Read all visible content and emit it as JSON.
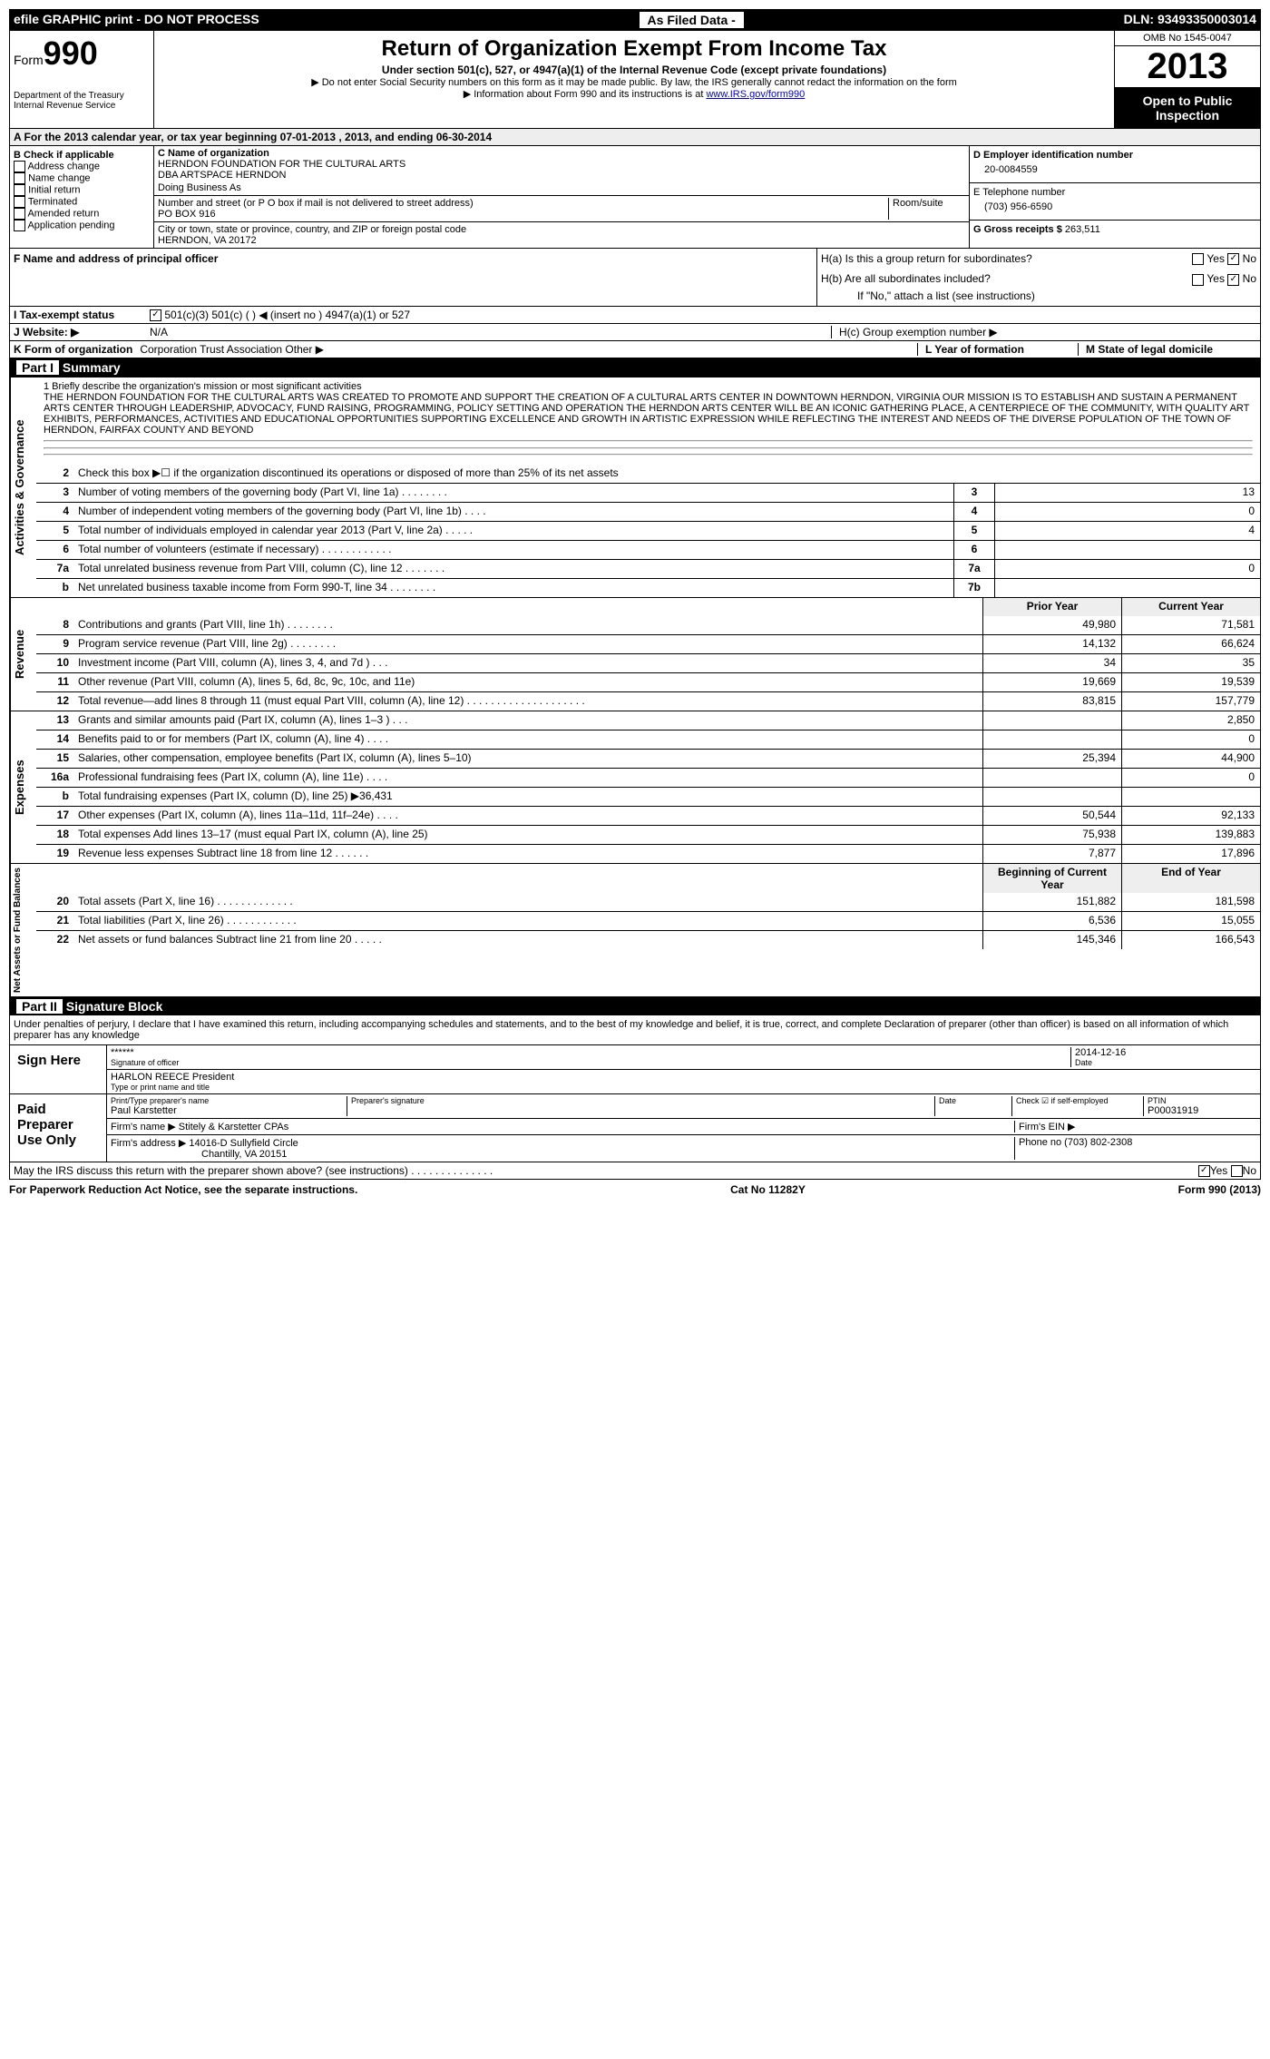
{
  "topbar": {
    "left": "efile GRAPHIC print - DO NOT PROCESS",
    "mid": "As Filed Data -",
    "right": "DLN: 93493350003014"
  },
  "header": {
    "form_word": "Form",
    "form_num": "990",
    "dept1": "Department of the Treasury",
    "dept2": "Internal Revenue Service",
    "title": "Return of Organization Exempt From Income Tax",
    "sub1": "Under section 501(c), 527, or 4947(a)(1) of the Internal Revenue Code (except private foundations)",
    "sub2": "▶ Do not enter Social Security numbers on this form as it may be made public. By law, the IRS generally cannot redact the information on the form",
    "sub3_pre": "▶ Information about Form 990 and its instructions is at ",
    "sub3_link": "www.IRS.gov/form990",
    "omb": "OMB No 1545-0047",
    "year": "2013",
    "open1": "Open to Public",
    "open2": "Inspection"
  },
  "rowA": "A For the 2013 calendar year, or tax year beginning 07-01-2013    , 2013, and ending 06-30-2014",
  "colB": {
    "head": "B Check if applicable",
    "items": [
      "Address change",
      "Name change",
      "Initial return",
      "Terminated",
      "Amended return",
      "Application pending"
    ]
  },
  "colC": {
    "name_lbl": "C Name of organization",
    "name1": "HERNDON FOUNDATION FOR THE CULTURAL ARTS",
    "name2": "DBA ARTSPACE HERNDON",
    "dba_lbl": "Doing Business As",
    "street_lbl": "Number and street (or P O  box if mail is not delivered to street address)",
    "room_lbl": "Room/suite",
    "street": "PO BOX 916",
    "city_lbl": "City or town, state or province, country, and ZIP or foreign postal code",
    "city": "HERNDON, VA  20172"
  },
  "colDE": {
    "d_lbl": "D Employer identification number",
    "ein": "20-0084559",
    "e_lbl": "E Telephone number",
    "phone": "(703) 956-6590",
    "g_lbl": "G Gross receipts $",
    "g_val": "263,511"
  },
  "secF": {
    "f_lbl": "F  Name and address of principal officer"
  },
  "secH": {
    "ha": "H(a)  Is this a group return for subordinates?",
    "hb": "H(b)  Are all subordinates included?",
    "hb_note": "If \"No,\" attach a list  (see instructions)",
    "hc": "H(c)   Group exemption number ▶",
    "yes": "Yes",
    "no": "No"
  },
  "lineI": {
    "lbl": "I  Tax-exempt status",
    "opts": "501(c)(3)       501(c) (   ) ◀ (insert no )       4947(a)(1) or       527"
  },
  "lineJ": {
    "lbl": "J  Website: ▶",
    "val": "N/A"
  },
  "lineK": {
    "lbl": "K Form of organization",
    "opts": "Corporation      Trust      Association      Other ▶",
    "l_lbl": "L Year of formation",
    "m_lbl": "M State of legal domicile"
  },
  "part1": {
    "num": "Part I",
    "title": "Summary"
  },
  "mission": {
    "lbl": "1   Briefly describe the organization's mission or most significant activities",
    "text": "THE HERNDON FOUNDATION FOR THE CULTURAL ARTS WAS CREATED TO PROMOTE AND SUPPORT THE CREATION OF A CULTURAL ARTS CENTER IN DOWNTOWN HERNDON, VIRGINIA  OUR MISSION IS TO ESTABLISH AND SUSTAIN A PERMANENT ARTS CENTER THROUGH LEADERSHIP, ADVOCACY, FUND RAISING, PROGRAMMING, POLICY SETTING AND OPERATION THE HERNDON ARTS CENTER WILL BE AN ICONIC GATHERING PLACE, A CENTERPIECE OF THE COMMUNITY, WITH QUALITY ART EXHIBITS, PERFORMANCES, ACTIVITIES AND EDUCATIONAL OPPORTUNITIES SUPPORTING EXCELLENCE AND GROWTH IN ARTISTIC EXPRESSION WHILE REFLECTING THE INTEREST AND NEEDS OF THE DIVERSE POPULATION OF THE TOWN OF HERNDON, FAIRFAX COUNTY AND BEYOND"
  },
  "tabs": {
    "ag": "Activities & Governance",
    "rev": "Revenue",
    "exp": "Expenses",
    "na": "Net Assets or Fund Balances"
  },
  "ag_rows": [
    {
      "n": "2",
      "d": "Check this box ▶☐ if the organization discontinued its operations or disposed of more than 25% of its net assets"
    },
    {
      "n": "3",
      "d": "Number of voting members of the governing body (Part VI, line 1a)  .  .  .  .  .  .  .  .",
      "b": "3",
      "v": "13"
    },
    {
      "n": "4",
      "d": "Number of independent voting members of the governing body (Part VI, line 1b)  .  .  .  .",
      "b": "4",
      "v": "0"
    },
    {
      "n": "5",
      "d": "Total number of individuals employed in calendar year 2013 (Part V, line 2a)  .  .  .  .  .",
      "b": "5",
      "v": "4"
    },
    {
      "n": "6",
      "d": "Total number of volunteers (estimate if necessary)  .  .  .  .  .  .  .  .  .  .  .  .",
      "b": "6",
      "v": ""
    },
    {
      "n": "7a",
      "d": "Total unrelated business revenue from Part VIII, column (C), line 12  .  .  .  .  .  .  .",
      "b": "7a",
      "v": "0"
    },
    {
      "n": "b",
      "d": "Net unrelated business taxable income from Form 990-T, line 34  .  .  .  .  .  .  .  .",
      "b": "7b",
      "v": ""
    }
  ],
  "py_cy": {
    "py": "Prior Year",
    "cy": "Current Year"
  },
  "rev_rows": [
    {
      "n": "8",
      "d": "Contributions and grants (Part VIII, line 1h)  .  .  .  .  .  .  .  .",
      "p": "49,980",
      "c": "71,581"
    },
    {
      "n": "9",
      "d": "Program service revenue (Part VIII, line 2g)  .  .  .  .  .  .  .  .",
      "p": "14,132",
      "c": "66,624"
    },
    {
      "n": "10",
      "d": "Investment income (Part VIII, column (A), lines 3, 4, and 7d )  .  .  .",
      "p": "34",
      "c": "35"
    },
    {
      "n": "11",
      "d": "Other revenue (Part VIII, column (A), lines 5, 6d, 8c, 9c, 10c, and 11e)",
      "p": "19,669",
      "c": "19,539"
    },
    {
      "n": "12",
      "d": "Total revenue—add lines 8 through 11 (must equal Part VIII, column (A), line 12)  .  .  .  .  .  .  .  .  .  .  .  .  .  .  .  .  .  .  .  .",
      "p": "83,815",
      "c": "157,779"
    }
  ],
  "exp_rows": [
    {
      "n": "13",
      "d": "Grants and similar amounts paid (Part IX, column (A), lines 1–3 )  .  .  .",
      "p": "",
      "c": "2,850"
    },
    {
      "n": "14",
      "d": "Benefits paid to or for members (Part IX, column (A), line 4)  .  .  .  .",
      "p": "",
      "c": "0"
    },
    {
      "n": "15",
      "d": "Salaries, other compensation, employee benefits (Part IX, column (A), lines 5–10)",
      "p": "25,394",
      "c": "44,900"
    },
    {
      "n": "16a",
      "d": "Professional fundraising fees (Part IX, column (A), line 11e)  .  .  .  .",
      "p": "",
      "c": "0"
    },
    {
      "n": "b",
      "d": "Total fundraising expenses (Part IX, column (D), line 25) ▶36,431",
      "p": "",
      "c": ""
    },
    {
      "n": "17",
      "d": "Other expenses (Part IX, column (A), lines 11a–11d, 11f–24e)  .  .  .  .",
      "p": "50,544",
      "c": "92,133"
    },
    {
      "n": "18",
      "d": "Total expenses  Add lines 13–17 (must equal Part IX, column (A), line 25)",
      "p": "75,938",
      "c": "139,883"
    },
    {
      "n": "19",
      "d": "Revenue less expenses  Subtract line 18 from line 12  .  .  .  .  .  .",
      "p": "7,877",
      "c": "17,896"
    }
  ],
  "na_head": {
    "p": "Beginning of Current Year",
    "c": "End of Year"
  },
  "na_rows": [
    {
      "n": "20",
      "d": "Total assets (Part X, line 16)  .  .  .  .  .  .  .  .  .  .  .  .  .",
      "p": "151,882",
      "c": "181,598"
    },
    {
      "n": "21",
      "d": "Total liabilities (Part X, line 26)  .  .  .  .  .  .  .  .  .  .  .  .",
      "p": "6,536",
      "c": "15,055"
    },
    {
      "n": "22",
      "d": "Net assets or fund balances  Subtract line 21 from line 20  .  .  .  .  .",
      "p": "145,346",
      "c": "166,543"
    }
  ],
  "part2": {
    "num": "Part II",
    "title": "Signature Block"
  },
  "perjury": "Under penalties of perjury, I declare that I have examined this return, including accompanying schedules and statements, and to the best of my knowledge and belief, it is true, correct, and complete  Declaration of preparer (other than officer) is based on all information of which preparer has any knowledge",
  "sign": {
    "here": "Sign Here",
    "stars": "******",
    "sig_lbl": "Signature of officer",
    "date": "2014-12-16",
    "date_lbl": "Date",
    "name": "HARLON REECE President",
    "name_lbl": "Type or print name and title"
  },
  "paid": {
    "lbl": "Paid Preparer Use Only",
    "prep_name_lbl": "Print/Type preparer's name",
    "prep_name": "Paul Karstetter",
    "prep_sig_lbl": "Preparer's signature",
    "date_lbl": "Date",
    "check_lbl": "Check ☑ if self-employed",
    "ptin_lbl": "PTIN",
    "ptin": "P00031919",
    "firm_name_lbl": "Firm's name    ▶",
    "firm_name": "Stitely & Karstetter CPAs",
    "firm_ein_lbl": "Firm's EIN ▶",
    "firm_addr_lbl": "Firm's address ▶",
    "firm_addr1": "14016-D Sullyfield Circle",
    "firm_addr2": "Chantilly, VA  20151",
    "phone_lbl": "Phone no",
    "phone": "(703) 802-2308"
  },
  "discuss": "May the IRS discuss this return with the preparer shown above? (see instructions)  .  .  .  .  .  .  .  .  .  .  .  .  .  .",
  "footer": {
    "left": "For Paperwork Reduction Act Notice, see the separate instructions.",
    "mid": "Cat No  11282Y",
    "right": "Form 990 (2013)"
  }
}
